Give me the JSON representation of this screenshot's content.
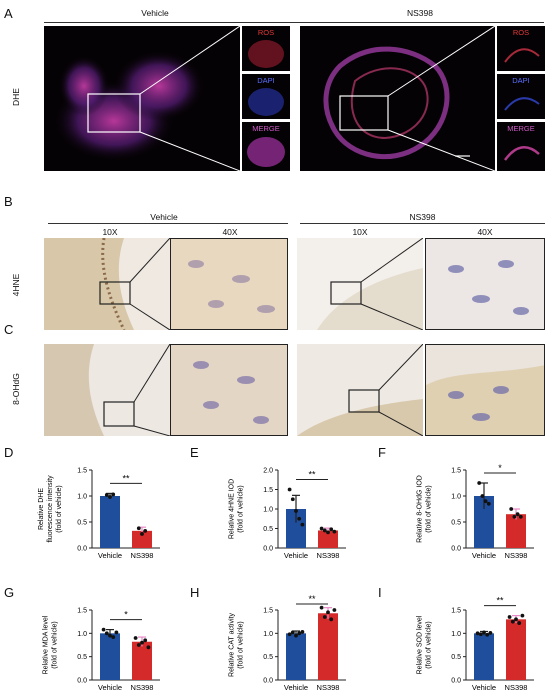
{
  "panels": {
    "A": "A",
    "B": "B",
    "C": "C",
    "D": "D",
    "E": "E",
    "F": "F",
    "G": "G",
    "H": "H",
    "I": "I"
  },
  "groups": {
    "vehicle": "Vehicle",
    "ns398": "NS398"
  },
  "magnifications": {
    "low": "10X",
    "high": "40X"
  },
  "stain_rows": {
    "dhe": "DHE",
    "hne": "4HNE",
    "ohdg": "8-OHdG"
  },
  "channels": {
    "ros": "ROS",
    "dapi": "DAPI",
    "merge": "MERGE"
  },
  "colors": {
    "vehicle_bar": "#1f4e9c",
    "ns398_bar": "#d42a2a",
    "ns398_err": "#e78ac7",
    "ros": "#e23a3a",
    "dapi": "#3a4ee2",
    "merge": "#c04ab8"
  },
  "chart_data": [
    {
      "id": "D",
      "type": "bar",
      "categories": [
        "Vehicle",
        "NS398"
      ],
      "ylabel": "Relative DHE fluorescence intensity (fold of vehicle)",
      "ylabel_lines": [
        "Relative DHE",
        "fluorescence intensity",
        "(fold of vehicle)"
      ],
      "ylim": [
        0,
        1.5
      ],
      "yticks": [
        "0.0",
        "0.5",
        "1.0",
        "1.5"
      ],
      "values": [
        1.0,
        0.33
      ],
      "errors": [
        0.05,
        0.07
      ],
      "points": [
        [
          1.02,
          0.98,
          1.03
        ],
        [
          0.38,
          0.27,
          0.33
        ]
      ],
      "significance": "**"
    },
    {
      "id": "E",
      "type": "bar",
      "categories": [
        "Vehicle",
        "NS398"
      ],
      "ylabel": "Relative 4HNE IOD (fold of vehicle)",
      "ylabel_lines": [
        "Relative 4HNE IOD",
        "(fold of vehicle)"
      ],
      "ylim": [
        0,
        2.0
      ],
      "yticks": [
        "0.0",
        "0.5",
        "1.0",
        "1.5",
        "2.0"
      ],
      "values": [
        1.0,
        0.45
      ],
      "errors": [
        0.35,
        0.06
      ],
      "points": [
        [
          1.5,
          1.25,
          0.95,
          0.75,
          0.6
        ],
        [
          0.5,
          0.45,
          0.4,
          0.48,
          0.42
        ]
      ],
      "significance": "**"
    },
    {
      "id": "F",
      "type": "bar",
      "categories": [
        "Vehicle",
        "NS398"
      ],
      "ylabel": "Relative 8-OHdG IOD (fold of vehicle)",
      "ylabel_lines": [
        "Relative 8-OHdG IOD",
        "(fold of vehicle)"
      ],
      "ylim": [
        0,
        1.5
      ],
      "yticks": [
        "0.0",
        "0.5",
        "1.0",
        "1.5"
      ],
      "values": [
        1.0,
        0.65
      ],
      "errors": [
        0.25,
        0.1
      ],
      "points": [
        [
          1.25,
          1.0,
          0.9,
          0.85
        ],
        [
          0.75,
          0.6,
          0.65,
          0.6
        ]
      ],
      "significance": "*"
    },
    {
      "id": "G",
      "type": "bar",
      "categories": [
        "Vehicle",
        "NS398"
      ],
      "ylabel": "Relative MDA level (fold of vehicle)",
      "ylabel_lines": [
        "Relative MDA level",
        "(fold of vehicle)"
      ],
      "ylim": [
        0,
        1.5
      ],
      "yticks": [
        "0.0",
        "0.5",
        "1.0",
        "1.5"
      ],
      "values": [
        1.0,
        0.82
      ],
      "errors": [
        0.08,
        0.1
      ],
      "points": [
        [
          1.08,
          1.0,
          0.95,
          0.92,
          1.02
        ],
        [
          0.9,
          0.75,
          0.8,
          0.85,
          0.7
        ]
      ],
      "significance": "*"
    },
    {
      "id": "H",
      "type": "bar",
      "categories": [
        "Vehicle",
        "NS398"
      ],
      "ylabel": "Relative CAT activity (fold of vehicle)",
      "ylabel_lines": [
        "Relative CAT activity",
        "(fold of vehicle)"
      ],
      "ylim": [
        0,
        1.5
      ],
      "yticks": [
        "0.0",
        "0.5",
        "1.0",
        "1.5"
      ],
      "values": [
        1.0,
        1.43
      ],
      "errors": [
        0.05,
        0.12
      ],
      "points": [
        [
          0.98,
          1.02,
          0.95,
          1.0,
          1.03
        ],
        [
          1.55,
          1.35,
          1.45,
          1.3,
          1.5
        ]
      ],
      "significance": "**"
    },
    {
      "id": "I",
      "type": "bar",
      "categories": [
        "Vehicle",
        "NS398"
      ],
      "ylabel": "Relative SOD level (fold of vehicle)",
      "ylabel_lines": [
        "Relative SOD level",
        "(fold of vehicle)"
      ],
      "ylim": [
        0,
        1.5
      ],
      "yticks": [
        "0.0",
        "0.5",
        "1.0",
        "1.5"
      ],
      "values": [
        1.0,
        1.3
      ],
      "errors": [
        0.04,
        0.08
      ],
      "points": [
        [
          1.0,
          0.98,
          1.02,
          0.97,
          1.01
        ],
        [
          1.35,
          1.25,
          1.3,
          1.22,
          1.38
        ]
      ],
      "significance": "**"
    }
  ]
}
